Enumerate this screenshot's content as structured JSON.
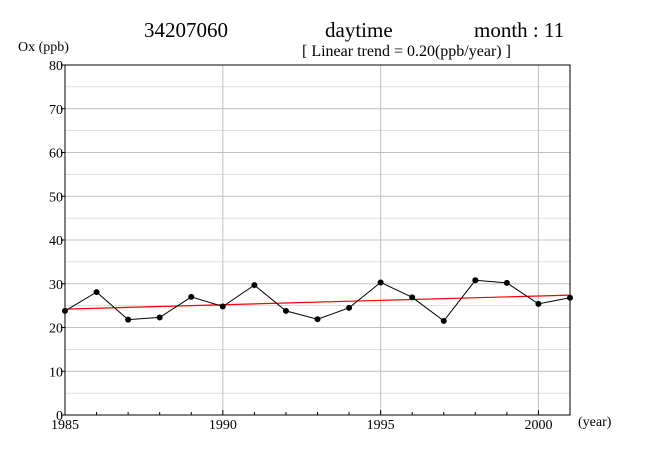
{
  "header": {
    "station": "34207060",
    "period": "daytime",
    "month": "month : 11",
    "trend": "[ Linear trend = 0.20(ppb/year) ]"
  },
  "colors": {
    "data_line": "#000000",
    "trend_line": "#ff0000",
    "grid": "#c0c0c0"
  },
  "chart_data": {
    "type": "line",
    "title": "daytime",
    "xlabel": "(year)",
    "ylabel": "Ox (ppb)",
    "xlim": [
      1985,
      2001
    ],
    "ylim": [
      0,
      80
    ],
    "grid": true,
    "x_ticks": [
      1985,
      1990,
      1995,
      2000
    ],
    "y_ticks": [
      0,
      10,
      20,
      30,
      40,
      50,
      60,
      70,
      80
    ],
    "series": [
      {
        "x": [
          1985,
          1986,
          1987,
          1988,
          1989,
          1990,
          1991,
          1992,
          1993,
          1994,
          1995,
          1996,
          1997,
          1998,
          1999,
          2000,
          2001
        ],
        "values": [
          23.8,
          28.1,
          21.8,
          22.3,
          27.0,
          24.8,
          29.7,
          23.8,
          21.9,
          24.5,
          30.3,
          26.9,
          21.5,
          30.8,
          30.2,
          25.4,
          26.8
        ]
      }
    ],
    "trend": {
      "start": [
        1985,
        24.2
      ],
      "end": [
        2001,
        27.4
      ]
    }
  }
}
